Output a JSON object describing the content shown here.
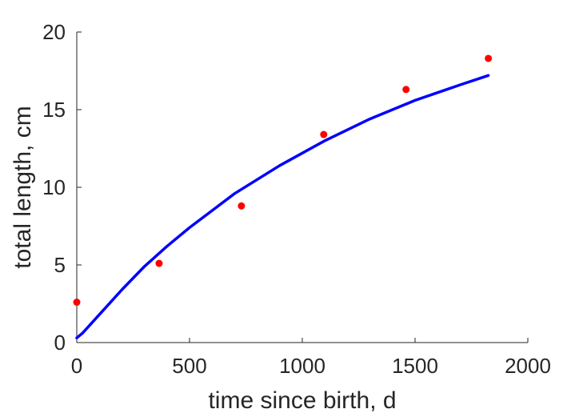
{
  "chart_data": {
    "type": "scatter",
    "title": "",
    "xlabel": "time since birth, d",
    "ylabel": "total length, cm",
    "xlim": [
      0,
      2000
    ],
    "ylim": [
      0,
      20
    ],
    "xticks": [
      0,
      500,
      1000,
      1500,
      2000
    ],
    "yticks": [
      0,
      5,
      10,
      15,
      20
    ],
    "grid": false,
    "series": [
      {
        "kind": "scatter",
        "color": "#ff0000",
        "points": [
          {
            "x": 0,
            "y": 2.6
          },
          {
            "x": 365,
            "y": 5.1
          },
          {
            "x": 730,
            "y": 8.8
          },
          {
            "x": 1095,
            "y": 13.4
          },
          {
            "x": 1460,
            "y": 16.3
          },
          {
            "x": 1825,
            "y": 18.3
          }
        ]
      },
      {
        "kind": "line",
        "color": "#0000ff",
        "points": [
          {
            "x": 0,
            "y": 0.3
          },
          {
            "x": 25,
            "y": 0.6
          },
          {
            "x": 100,
            "y": 1.8
          },
          {
            "x": 200,
            "y": 3.4
          },
          {
            "x": 300,
            "y": 4.9
          },
          {
            "x": 400,
            "y": 6.2
          },
          {
            "x": 500,
            "y": 7.4
          },
          {
            "x": 600,
            "y": 8.5
          },
          {
            "x": 700,
            "y": 9.6
          },
          {
            "x": 800,
            "y": 10.5
          },
          {
            "x": 900,
            "y": 11.4
          },
          {
            "x": 1000,
            "y": 12.2
          },
          {
            "x": 1100,
            "y": 13.0
          },
          {
            "x": 1200,
            "y": 13.7
          },
          {
            "x": 1300,
            "y": 14.4
          },
          {
            "x": 1400,
            "y": 15.0
          },
          {
            "x": 1500,
            "y": 15.6
          },
          {
            "x": 1600,
            "y": 16.1
          },
          {
            "x": 1700,
            "y": 16.6
          },
          {
            "x": 1825,
            "y": 17.2
          }
        ]
      }
    ]
  }
}
